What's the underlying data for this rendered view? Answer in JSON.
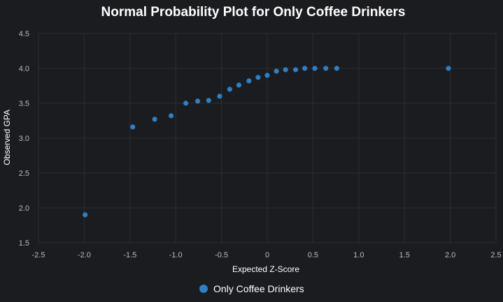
{
  "chart_data": {
    "type": "scatter",
    "title": "Normal Probability Plot for Only Coffee Drinkers",
    "xlabel": "Expected Z-Score",
    "ylabel": "Observed GPA",
    "xlim": [
      -2.5,
      2.5
    ],
    "ylim": [
      1.5,
      4.5
    ],
    "x_ticks": [
      "-2.5",
      "-2.0",
      "-1.5",
      "-1.0",
      "-0.5",
      "0",
      "0.5",
      "1.0",
      "1.5",
      "2.0",
      "2.5"
    ],
    "y_ticks": [
      "1.5",
      "2.0",
      "2.5",
      "3.0",
      "3.5",
      "4.0",
      "4.5"
    ],
    "grid": true,
    "legend_position": "bottom-center",
    "series": [
      {
        "name": "Only Coffee Drinkers",
        "color": "#2e7fc4",
        "x": [
          -1.99,
          -1.47,
          -1.23,
          -1.05,
          -0.89,
          -0.76,
          -0.64,
          -0.52,
          -0.41,
          -0.31,
          -0.2,
          -0.1,
          0.0,
          0.1,
          0.2,
          0.31,
          0.41,
          0.52,
          0.64,
          0.76,
          1.98
        ],
        "y": [
          1.9,
          3.16,
          3.27,
          3.32,
          3.5,
          3.53,
          3.54,
          3.6,
          3.7,
          3.76,
          3.82,
          3.87,
          3.9,
          3.96,
          3.98,
          3.98,
          4.0,
          4.0,
          4.0,
          4.0,
          4.0
        ]
      }
    ]
  }
}
